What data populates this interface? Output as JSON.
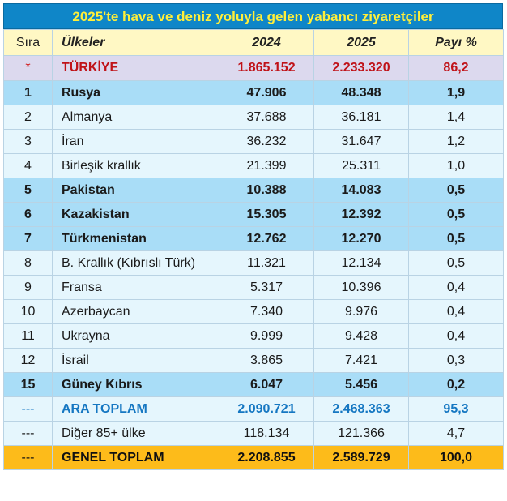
{
  "title": "2025'te hava ve deniz yoluyla gelen yabancı ziyaretçiler",
  "headers": {
    "rank": "Sıra",
    "country": "Ülkeler",
    "y2024": "2024",
    "y2025": "2025",
    "share": "Payı %"
  },
  "turkiye": {
    "rank": "*",
    "country": "TÜRKİYE",
    "y2024": "1.865.152",
    "y2025": "2.233.320",
    "share": "86,2"
  },
  "rows": [
    {
      "rank": "1",
      "country": "Rusya",
      "y2024": "47.906",
      "y2025": "48.348",
      "share": "1,9"
    },
    {
      "rank": "2",
      "country": "Almanya",
      "y2024": "37.688",
      "y2025": "36.181",
      "share": "1,4"
    },
    {
      "rank": "3",
      "country": "İran",
      "y2024": "36.232",
      "y2025": "31.647",
      "share": "1,2"
    },
    {
      "rank": "4",
      "country": "Birleşik krallık",
      "y2024": "21.399",
      "y2025": "25.311",
      "share": "1,0"
    },
    {
      "rank": "5",
      "country": "Pakistan",
      "y2024": "10.388",
      "y2025": "14.083",
      "share": "0,5"
    },
    {
      "rank": "6",
      "country": "Kazakistan",
      "y2024": "15.305",
      "y2025": "12.392",
      "share": "0,5"
    },
    {
      "rank": "7",
      "country": "Türkmenistan",
      "y2024": "12.762",
      "y2025": "12.270",
      "share": "0,5"
    },
    {
      "rank": "8",
      "country": "B. Krallık (Kıbrıslı Türk)",
      "y2024": "11.321",
      "y2025": "12.134",
      "share": "0,5"
    },
    {
      "rank": "9",
      "country": "Fransa",
      "y2024": "5.317",
      "y2025": "10.396",
      "share": "0,4"
    },
    {
      "rank": "10",
      "country": "Azerbaycan",
      "y2024": "7.340",
      "y2025": "9.976",
      "share": "0,4"
    },
    {
      "rank": "11",
      "country": "Ukrayna",
      "y2024": "9.999",
      "y2025": "9.428",
      "share": "0,4"
    },
    {
      "rank": "12",
      "country": "İsrail",
      "y2024": "3.865",
      "y2025": "7.421",
      "share": "0,3"
    },
    {
      "rank": "15",
      "country": "Güney Kıbrıs",
      "y2024": "6.047",
      "y2025": "5.456",
      "share": "0,2"
    }
  ],
  "subtotal": {
    "rank": "---",
    "country": "ARA TOPLAM",
    "y2024": "2.090.721",
    "y2025": "2.468.363",
    "share": "95,3"
  },
  "other": {
    "rank": "---",
    "country": "Diğer 85+ ülke",
    "y2024": "118.134",
    "y2025": "121.366",
    "share": "4,7"
  },
  "total": {
    "rank": "---",
    "country": "GENEL TOPLAM",
    "y2024": "2.208.855",
    "y2025": "2.589.729",
    "share": "100,0"
  },
  "colors": {
    "title_bg": "#0f86c8",
    "title_text": "#ffef3a",
    "highlight_row": "#a9ddf7",
    "light_row": "#e5f6fd",
    "total_row": "#fdbb1a",
    "turkiye_text": "#c01218",
    "subtotal_text": "#1577c2"
  }
}
